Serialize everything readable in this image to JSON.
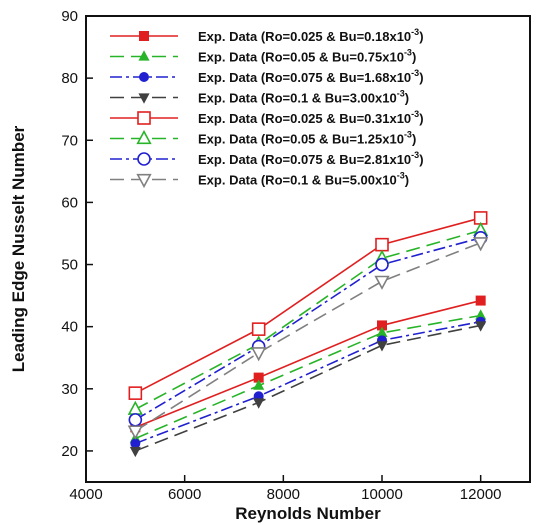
{
  "chart_data": {
    "type": "line",
    "xlabel": "Reynolds Number",
    "ylabel": "Leading Edge Nusselt Number",
    "xlim": [
      4000,
      13000
    ],
    "ylim": [
      15,
      90
    ],
    "xticks": [
      4000,
      6000,
      8000,
      10000,
      12000
    ],
    "yticks": [
      20,
      30,
      40,
      50,
      60,
      70,
      80,
      90
    ],
    "grid": false,
    "legend_position": "top-left",
    "x": [
      5000,
      7500,
      10000,
      12000
    ],
    "series": [
      {
        "name": "Exp. Data (Ro=0.025 & Bu=0.18x10",
        "sup": "-3",
        "close": ")",
        "color": "#e02020",
        "dash": "solid",
        "marker": "square",
        "filled": true,
        "values": [
          23.8,
          31.8,
          40.2,
          44.2
        ]
      },
      {
        "name": "Exp. Data (Ro=0.05 & Bu=0.75x10",
        "sup": "-3",
        "close": ")",
        "color": "#28b428",
        "dash": "long-dash",
        "marker": "triangle-up",
        "filled": true,
        "values": [
          22.0,
          30.5,
          39.0,
          41.8
        ]
      },
      {
        "name": "Exp. Data (Ro=0.075 & Bu=1.68x10",
        "sup": "-3",
        "close": ")",
        "color": "#2020d0",
        "dash": "dash-dot",
        "marker": "circle",
        "filled": true,
        "values": [
          21.2,
          28.8,
          37.8,
          40.8
        ]
      },
      {
        "name": "Exp. Data (Ro=0.1 & Bu=3.00x10",
        "sup": "-3",
        "close": ")",
        "color": "#404040",
        "dash": "long-dash",
        "marker": "triangle-down",
        "filled": true,
        "values": [
          20.0,
          27.8,
          37.0,
          40.2
        ]
      },
      {
        "name": "Exp. Data (Ro=0.025 & Bu=0.31x10",
        "sup": "-3",
        "close": ")",
        "color": "#e02020",
        "dash": "solid",
        "marker": "square",
        "filled": false,
        "values": [
          29.3,
          39.6,
          53.2,
          57.5
        ]
      },
      {
        "name": "Exp. Data (Ro=0.05 & Bu=1.25x10",
        "sup": "-3",
        "close": ")",
        "color": "#28b428",
        "dash": "long-dash",
        "marker": "triangle-up",
        "filled": false,
        "values": [
          26.7,
          37.2,
          51.0,
          55.5
        ]
      },
      {
        "name": "Exp. Data (Ro=0.075 & Bu=2.81x10",
        "sup": "-3",
        "close": ")",
        "color": "#2020d0",
        "dash": "dash-dot",
        "marker": "circle",
        "filled": false,
        "values": [
          25.0,
          36.8,
          50.0,
          54.3
        ]
      },
      {
        "name": "Exp. Data (Ro=0.1 & Bu=5.00x10",
        "sup": "-3",
        "close": ")",
        "color": "#808080",
        "dash": "long-dash",
        "marker": "triangle-down",
        "filled": false,
        "values": [
          23.2,
          35.8,
          47.3,
          53.5
        ]
      }
    ]
  }
}
